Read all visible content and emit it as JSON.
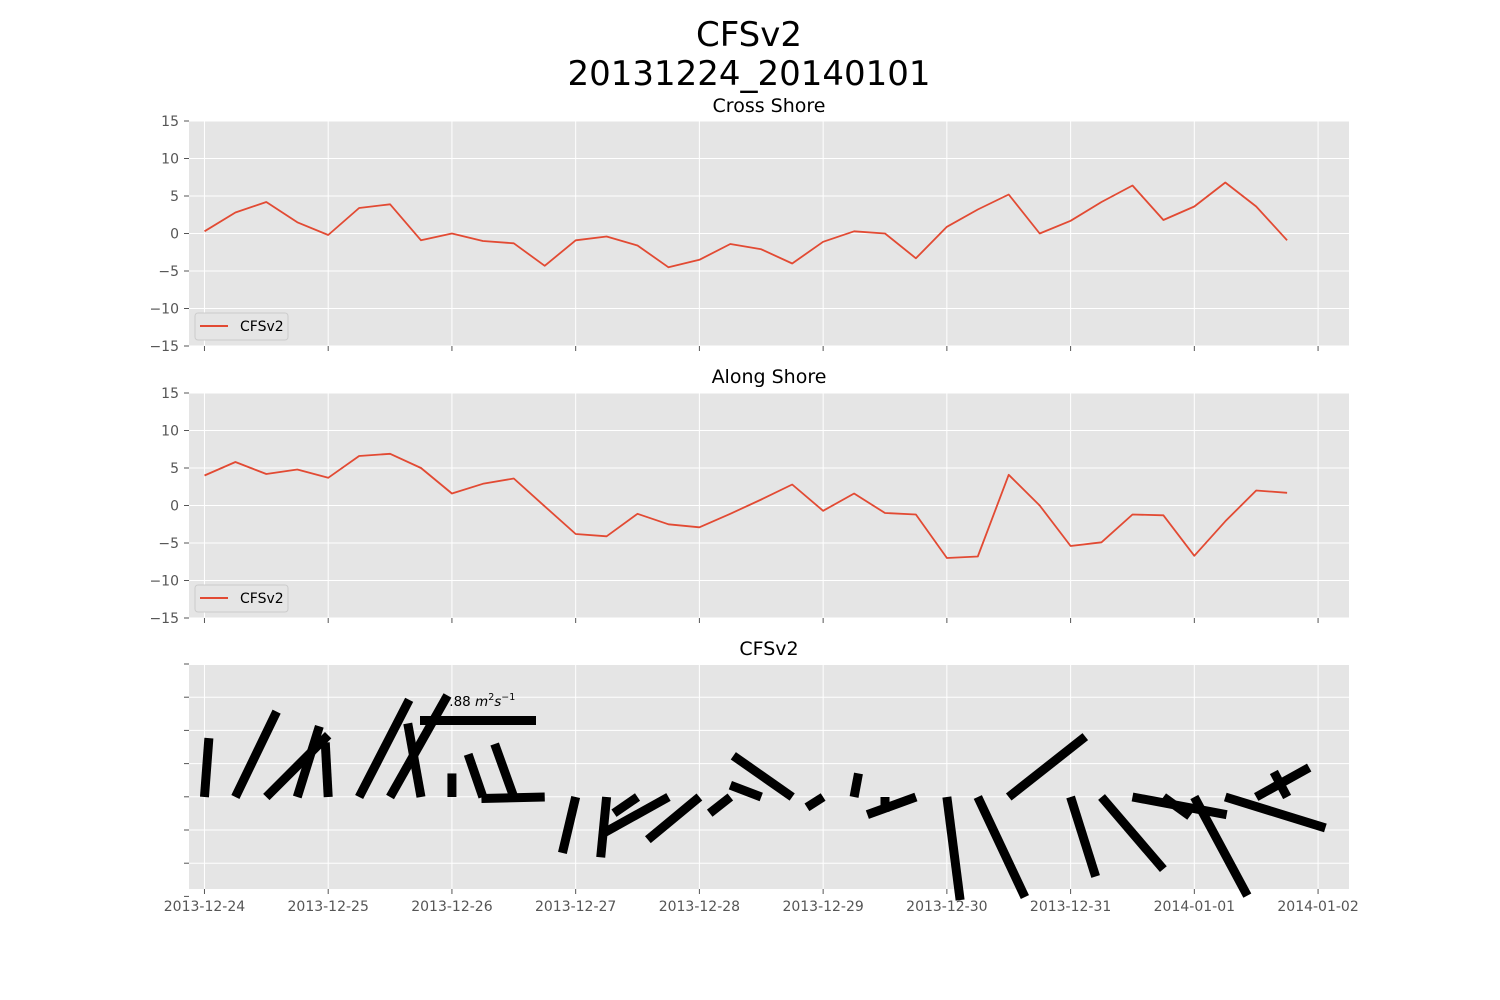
{
  "figure": {
    "title_line1": "CFSv2",
    "title_line2": "20131224_20140101"
  },
  "chart_data": [
    {
      "type": "line",
      "title": "Cross Shore",
      "xlabel": "",
      "ylabel": "",
      "ylim": [
        -15,
        15
      ],
      "yticks": [
        -15,
        -10,
        -5,
        0,
        5,
        10,
        15
      ],
      "xlim": [
        "2013-12-23T21:00",
        "2014-01-02T06:00"
      ],
      "xticks": [
        "2013-12-24",
        "2013-12-25",
        "2013-12-26",
        "2013-12-27",
        "2013-12-28",
        "2013-12-29",
        "2013-12-30",
        "2013-12-31",
        "2014-01-01",
        "2014-01-02"
      ],
      "show_xtick_labels": false,
      "grid": true,
      "legend": "lower-left",
      "series": [
        {
          "name": "CFSv2",
          "color": "#E24A33",
          "x": [
            "2013-12-24T00:00",
            "2013-12-24T06:00",
            "2013-12-24T12:00",
            "2013-12-24T18:00",
            "2013-12-25T00:00",
            "2013-12-25T06:00",
            "2013-12-25T12:00",
            "2013-12-25T18:00",
            "2013-12-26T00:00",
            "2013-12-26T06:00",
            "2013-12-26T12:00",
            "2013-12-26T18:00",
            "2013-12-27T00:00",
            "2013-12-27T06:00",
            "2013-12-27T12:00",
            "2013-12-27T18:00",
            "2013-12-28T00:00",
            "2013-12-28T06:00",
            "2013-12-28T12:00",
            "2013-12-28T18:00",
            "2013-12-29T00:00",
            "2013-12-29T06:00",
            "2013-12-29T12:00",
            "2013-12-29T18:00",
            "2013-12-30T00:00",
            "2013-12-30T06:00",
            "2013-12-30T12:00",
            "2013-12-30T18:00",
            "2013-12-31T00:00",
            "2013-12-31T06:00",
            "2013-12-31T12:00",
            "2013-12-31T18:00",
            "2014-01-01T00:00",
            "2014-01-01T06:00",
            "2014-01-01T12:00",
            "2014-01-01T18:00"
          ],
          "values": [
            0.3,
            2.8,
            4.2,
            1.5,
            -0.2,
            3.4,
            3.9,
            -0.9,
            0.0,
            -1.0,
            -1.3,
            -4.3,
            -0.9,
            -0.4,
            -1.6,
            -4.5,
            -3.5,
            -1.4,
            -2.1,
            -4.0,
            -1.1,
            0.3,
            0.0,
            -3.3,
            0.9,
            3.2,
            5.2,
            0.0,
            1.7,
            4.2,
            6.4,
            1.8,
            3.6,
            6.8,
            3.6,
            -0.9
          ]
        }
      ]
    },
    {
      "type": "line",
      "title": "Along Shore",
      "xlabel": "",
      "ylabel": "",
      "ylim": [
        -15,
        15
      ],
      "yticks": [
        -15,
        -10,
        -5,
        0,
        5,
        10,
        15
      ],
      "xlim": [
        "2013-12-23T21:00",
        "2014-01-02T06:00"
      ],
      "xticks": [
        "2013-12-24",
        "2013-12-25",
        "2013-12-26",
        "2013-12-27",
        "2013-12-28",
        "2013-12-29",
        "2013-12-30",
        "2013-12-31",
        "2014-01-01",
        "2014-01-02"
      ],
      "show_xtick_labels": false,
      "grid": true,
      "legend": "lower-left",
      "series": [
        {
          "name": "CFSv2",
          "color": "#E24A33",
          "x": [
            "2013-12-24T00:00",
            "2013-12-24T06:00",
            "2013-12-24T12:00",
            "2013-12-24T18:00",
            "2013-12-25T00:00",
            "2013-12-25T06:00",
            "2013-12-25T12:00",
            "2013-12-25T18:00",
            "2013-12-26T00:00",
            "2013-12-26T06:00",
            "2013-12-26T12:00",
            "2013-12-26T18:00",
            "2013-12-27T00:00",
            "2013-12-27T06:00",
            "2013-12-27T12:00",
            "2013-12-27T18:00",
            "2013-12-28T00:00",
            "2013-12-28T06:00",
            "2013-12-28T12:00",
            "2013-12-28T18:00",
            "2013-12-29T00:00",
            "2013-12-29T06:00",
            "2013-12-29T12:00",
            "2013-12-29T18:00",
            "2013-12-30T00:00",
            "2013-12-30T06:00",
            "2013-12-30T12:00",
            "2013-12-30T18:00",
            "2013-12-31T00:00",
            "2013-12-31T06:00",
            "2013-12-31T12:00",
            "2013-12-31T18:00",
            "2014-01-01T00:00",
            "2014-01-01T06:00",
            "2014-01-01T12:00",
            "2014-01-01T18:00"
          ],
          "values": [
            4.0,
            5.8,
            4.2,
            4.8,
            3.7,
            6.6,
            6.9,
            5.0,
            1.6,
            2.9,
            3.6,
            -0.1,
            -3.8,
            -4.1,
            -1.1,
            -2.5,
            -2.9,
            -1.1,
            0.8,
            2.8,
            -0.7,
            1.6,
            -1.0,
            -1.2,
            -7.0,
            -6.8,
            4.1,
            0.0,
            -5.4,
            -4.9,
            -1.2,
            -1.3,
            -6.7,
            -2.1,
            2.0,
            1.7
          ]
        }
      ]
    },
    {
      "type": "quiver",
      "title": "CFSv2",
      "xlabel": "",
      "ylabel": "",
      "xlim": [
        "2013-12-23T21:00",
        "2014-01-02T06:00"
      ],
      "xticks": [
        "2013-12-24",
        "2013-12-25",
        "2013-12-26",
        "2013-12-27",
        "2013-12-28",
        "2013-12-29",
        "2013-12-30",
        "2013-12-31",
        "2014-01-01",
        "2014-01-02"
      ],
      "xtick_labels": [
        "2013-12-24",
        "2013-12-25",
        "2013-12-26",
        "2013-12-27",
        "2013-12-28",
        "2013-12-29",
        "2013-12-30",
        "2013-12-31",
        "2014-01-01",
        "2014-01-02"
      ],
      "ytick_labels": [
        "",
        "",
        "",
        "",
        "",
        "",
        "",
        ""
      ],
      "grid": true,
      "color": "#000000",
      "key_label_value": "7.88",
      "key_magnitude": 7.88,
      "vectors_from": "series of the Cross Shore (u) and Along Shore (v) panels"
    }
  ]
}
